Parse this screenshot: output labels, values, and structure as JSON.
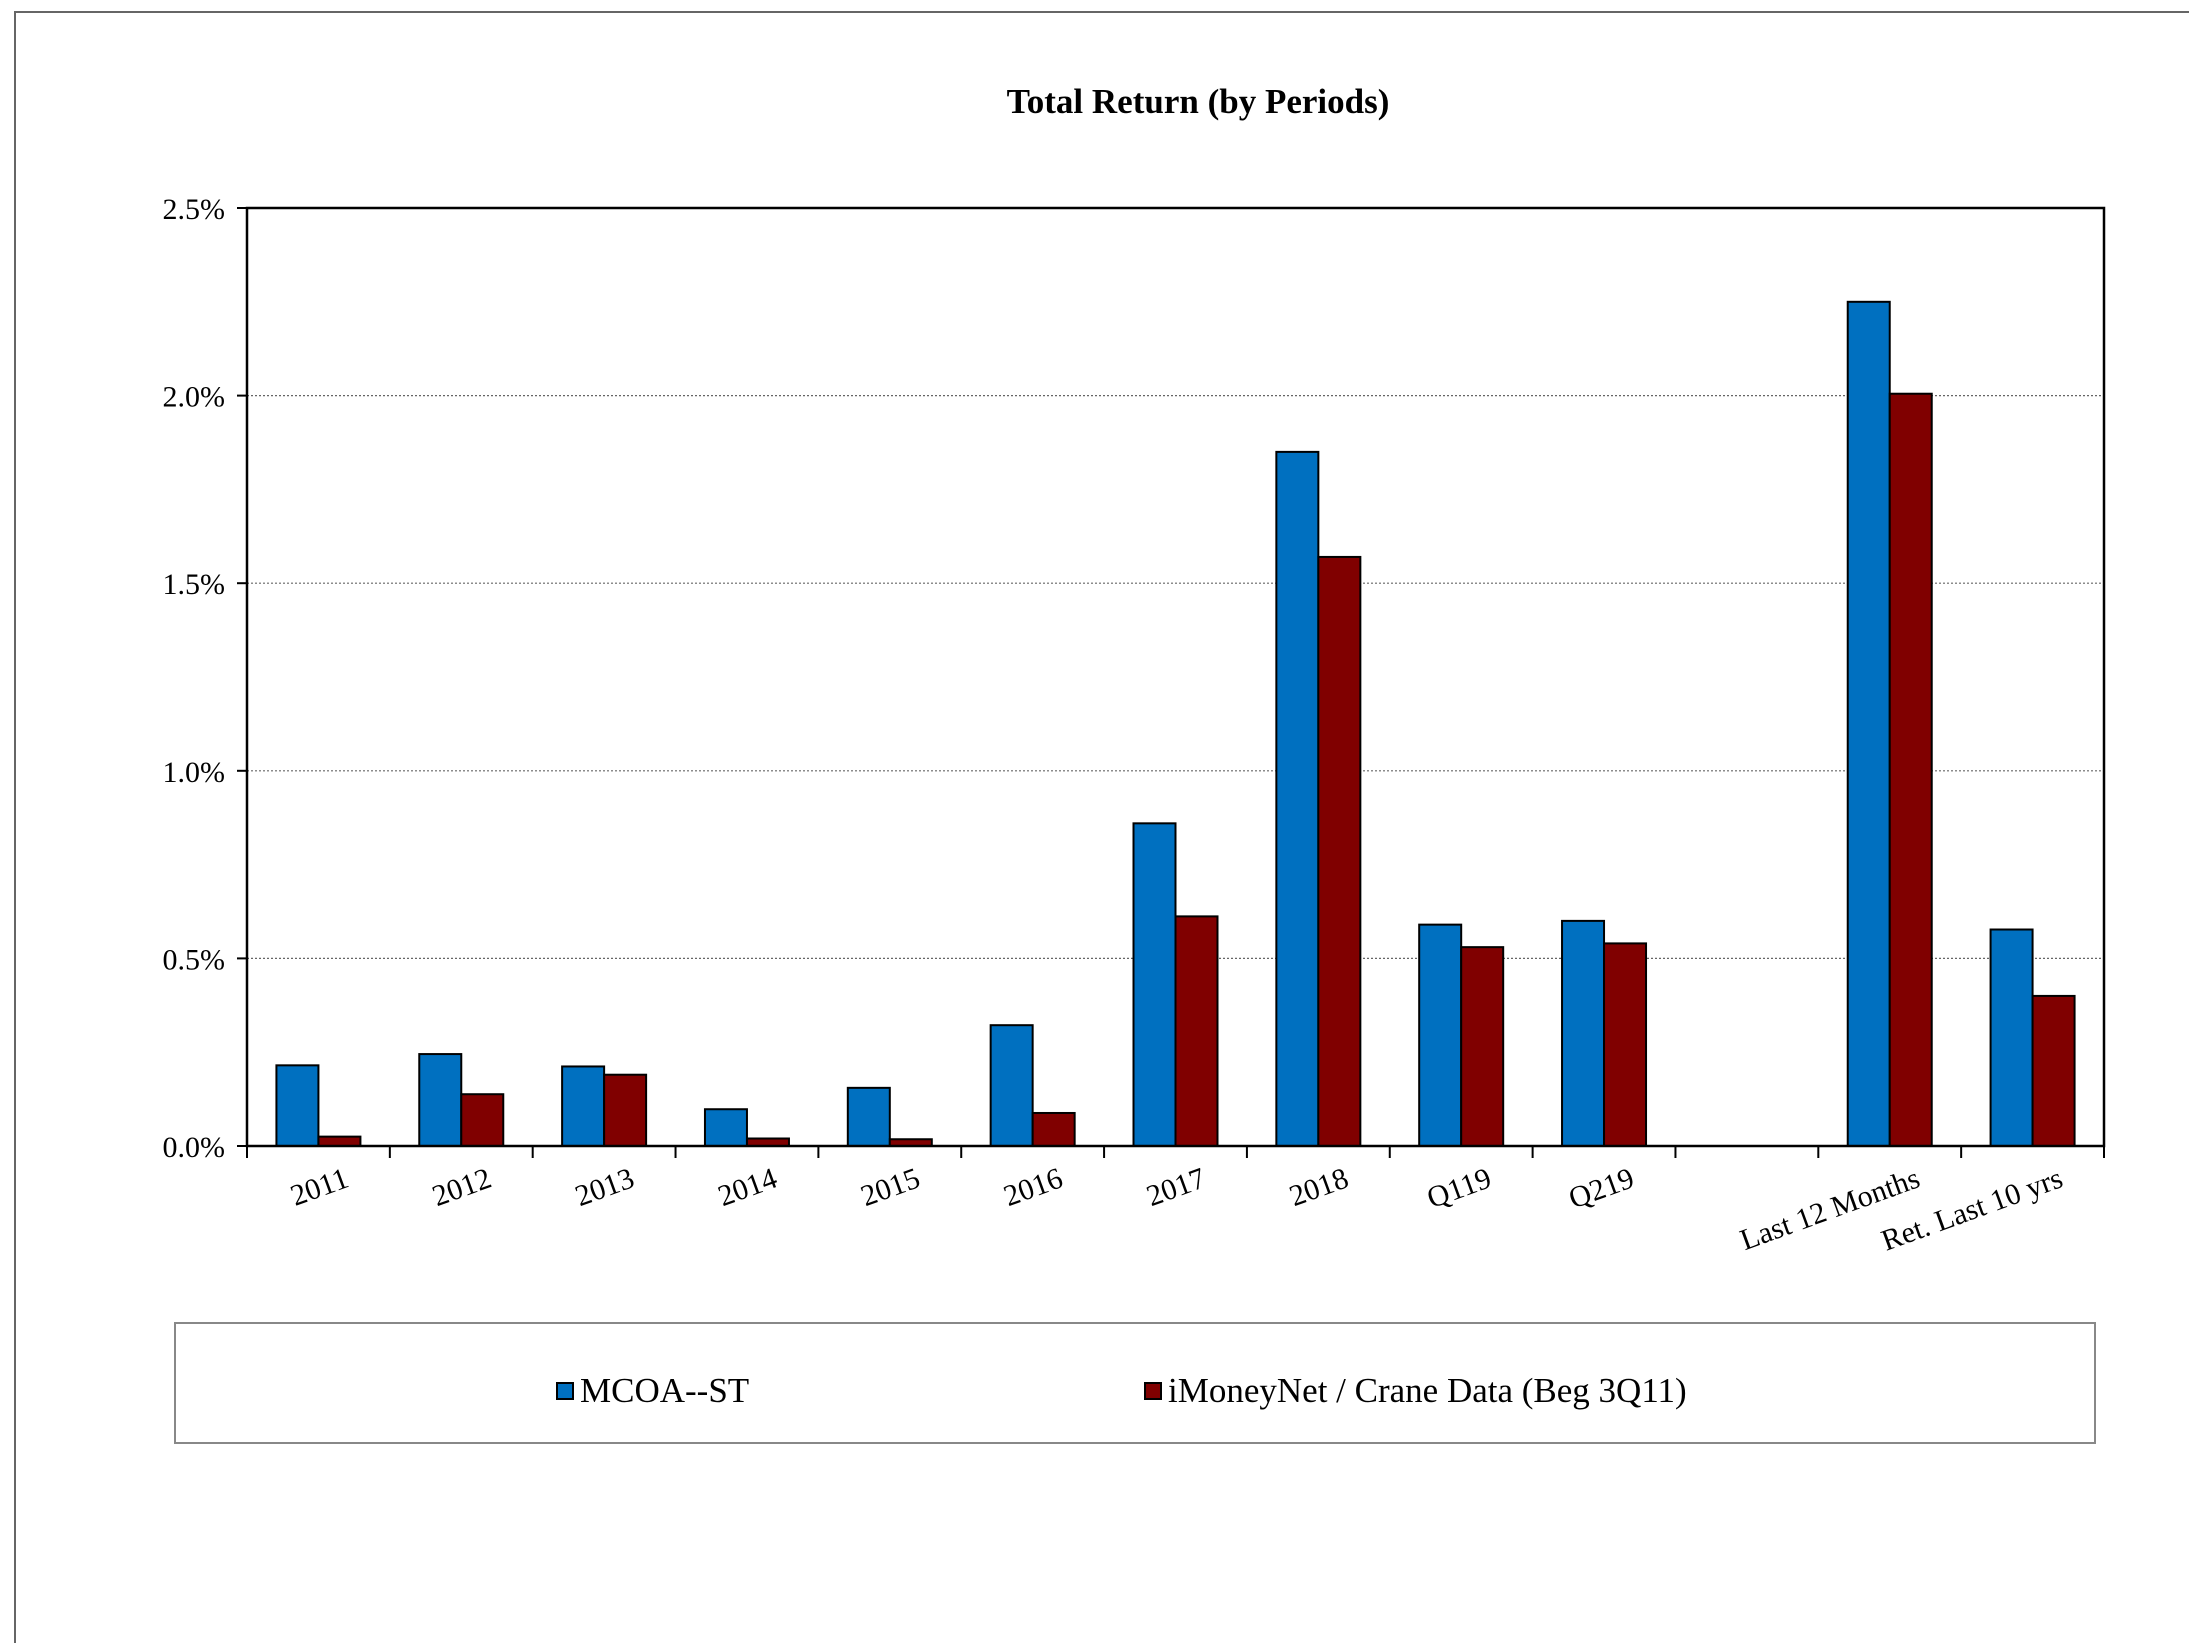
{
  "chart_data": {
    "type": "bar",
    "title": "Total Return (by Periods)",
    "xlabel": "",
    "ylabel": "",
    "ylim": [
      0,
      0.025
    ],
    "yticks": [
      "0.0%",
      "0.5%",
      "1.0%",
      "1.5%",
      "2.0%",
      "2.5%"
    ],
    "grid": true,
    "legend_position": "bottom",
    "categories": [
      "2011",
      "2012",
      "2013",
      "2014",
      "2015",
      "2016",
      "2017",
      "2018",
      "Q119",
      "Q219",
      "",
      "Last 12 Months",
      "Ret. Last 10 yrs"
    ],
    "series": [
      {
        "name": "MCOA--ST",
        "color": "#0070C0",
        "values": [
          0.00215,
          0.00245,
          0.00212,
          0.00098,
          0.00155,
          0.00322,
          0.0086,
          0.0185,
          0.0059,
          0.006,
          null,
          0.0225,
          0.00577
        ]
      },
      {
        "name": "iMoneyNet / Crane Data (Beg 3Q11)",
        "color": "#800000",
        "values": [
          0.00025,
          0.00138,
          0.0019,
          0.0002,
          0.00018,
          0.00088,
          0.00612,
          0.0157,
          0.0053,
          0.0054,
          null,
          0.02005,
          0.004
        ]
      }
    ]
  }
}
